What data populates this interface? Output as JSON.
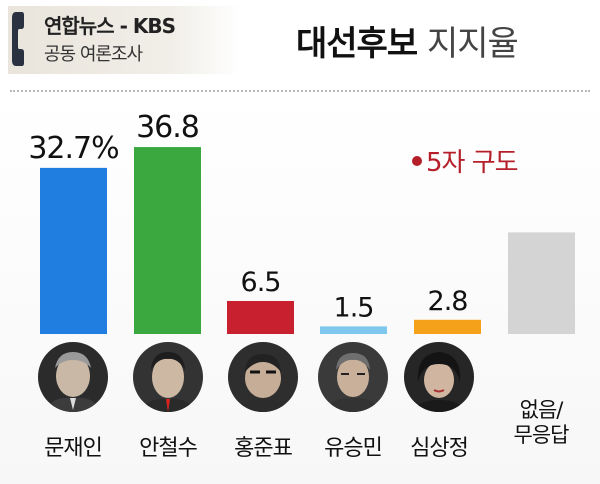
{
  "header": {
    "source_line1": "연합뉴스 - KBS",
    "source_line2": "공동 여론조사",
    "title_bold": "대선후보",
    "title_light": "지지율"
  },
  "annotation": "5자 구도",
  "colors": {
    "moon": "#1f7ee0",
    "ahn": "#3aa83e",
    "hong": "#c8202e",
    "yoo": "#7ec8ee",
    "sim": "#f5a21a",
    "none": "#d4d4d4",
    "annotation": "#b51f2a"
  },
  "chart_data": {
    "type": "bar",
    "title": "대선후보 지지율",
    "subtitle": "5자 구도",
    "categories": [
      "문재인",
      "안철수",
      "홍준표",
      "유승민",
      "심상정",
      "없음/무응답"
    ],
    "values": [
      32.7,
      36.8,
      6.5,
      1.5,
      2.8,
      20.0
    ],
    "value_labels": [
      "32.7%",
      "36.8",
      "6.5",
      "1.5",
      "2.8",
      ""
    ],
    "series_colors": [
      "#1f7ee0",
      "#3aa83e",
      "#c8202e",
      "#7ec8ee",
      "#f5a21a",
      "#d4d4d4"
    ],
    "ylim": [
      0,
      40
    ],
    "grid": false,
    "legend": "none"
  },
  "candidates": [
    {
      "name": "문재인",
      "icon": "portrait-moon"
    },
    {
      "name": "안철수",
      "icon": "portrait-ahn"
    },
    {
      "name": "홍준표",
      "icon": "portrait-hong"
    },
    {
      "name": "유승민",
      "icon": "portrait-yoo"
    },
    {
      "name": "심상정",
      "icon": "portrait-sim"
    }
  ],
  "none_label": [
    "없음/",
    "무응답"
  ]
}
